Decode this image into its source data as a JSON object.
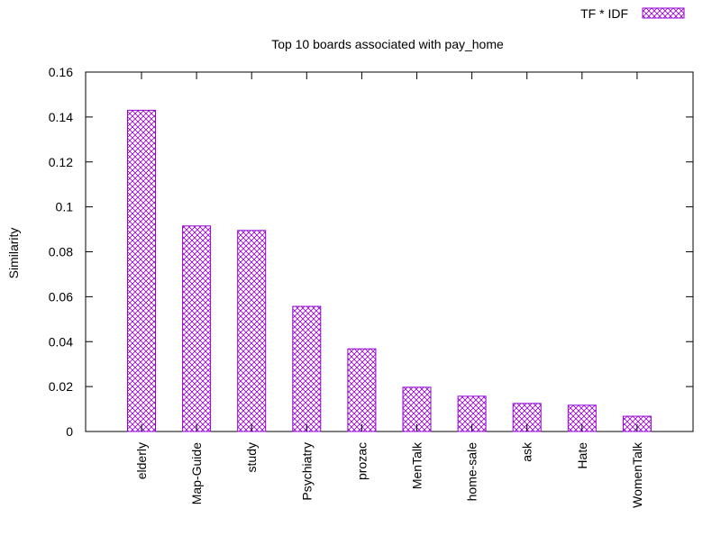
{
  "chart_data": {
    "type": "bar",
    "title": "Top 10 boards associated with pay_home",
    "xlabel": "",
    "ylabel": "Similarity",
    "ylim": [
      0,
      0.16
    ],
    "yticks": [
      "0",
      "0.02",
      "0.04",
      "0.06",
      "0.08",
      "0.1",
      "0.12",
      "0.14",
      "0.16"
    ],
    "categories": [
      "elderly",
      "Map-Guide",
      "study",
      "Psychiatry",
      "prozac",
      "MenTalk",
      "home-sale",
      "ask",
      "Hate",
      "WomenTalk"
    ],
    "series": [
      {
        "name": "TF * IDF",
        "values": [
          0.143,
          0.0915,
          0.0895,
          0.0557,
          0.0368,
          0.0197,
          0.0157,
          0.0125,
          0.0117,
          0.0068
        ]
      }
    ],
    "legend_position": "top-right",
    "grid": false,
    "colors": {
      "bar_stroke": "#9400d3",
      "hatch": "#9400d3",
      "axis": "#000000"
    }
  }
}
